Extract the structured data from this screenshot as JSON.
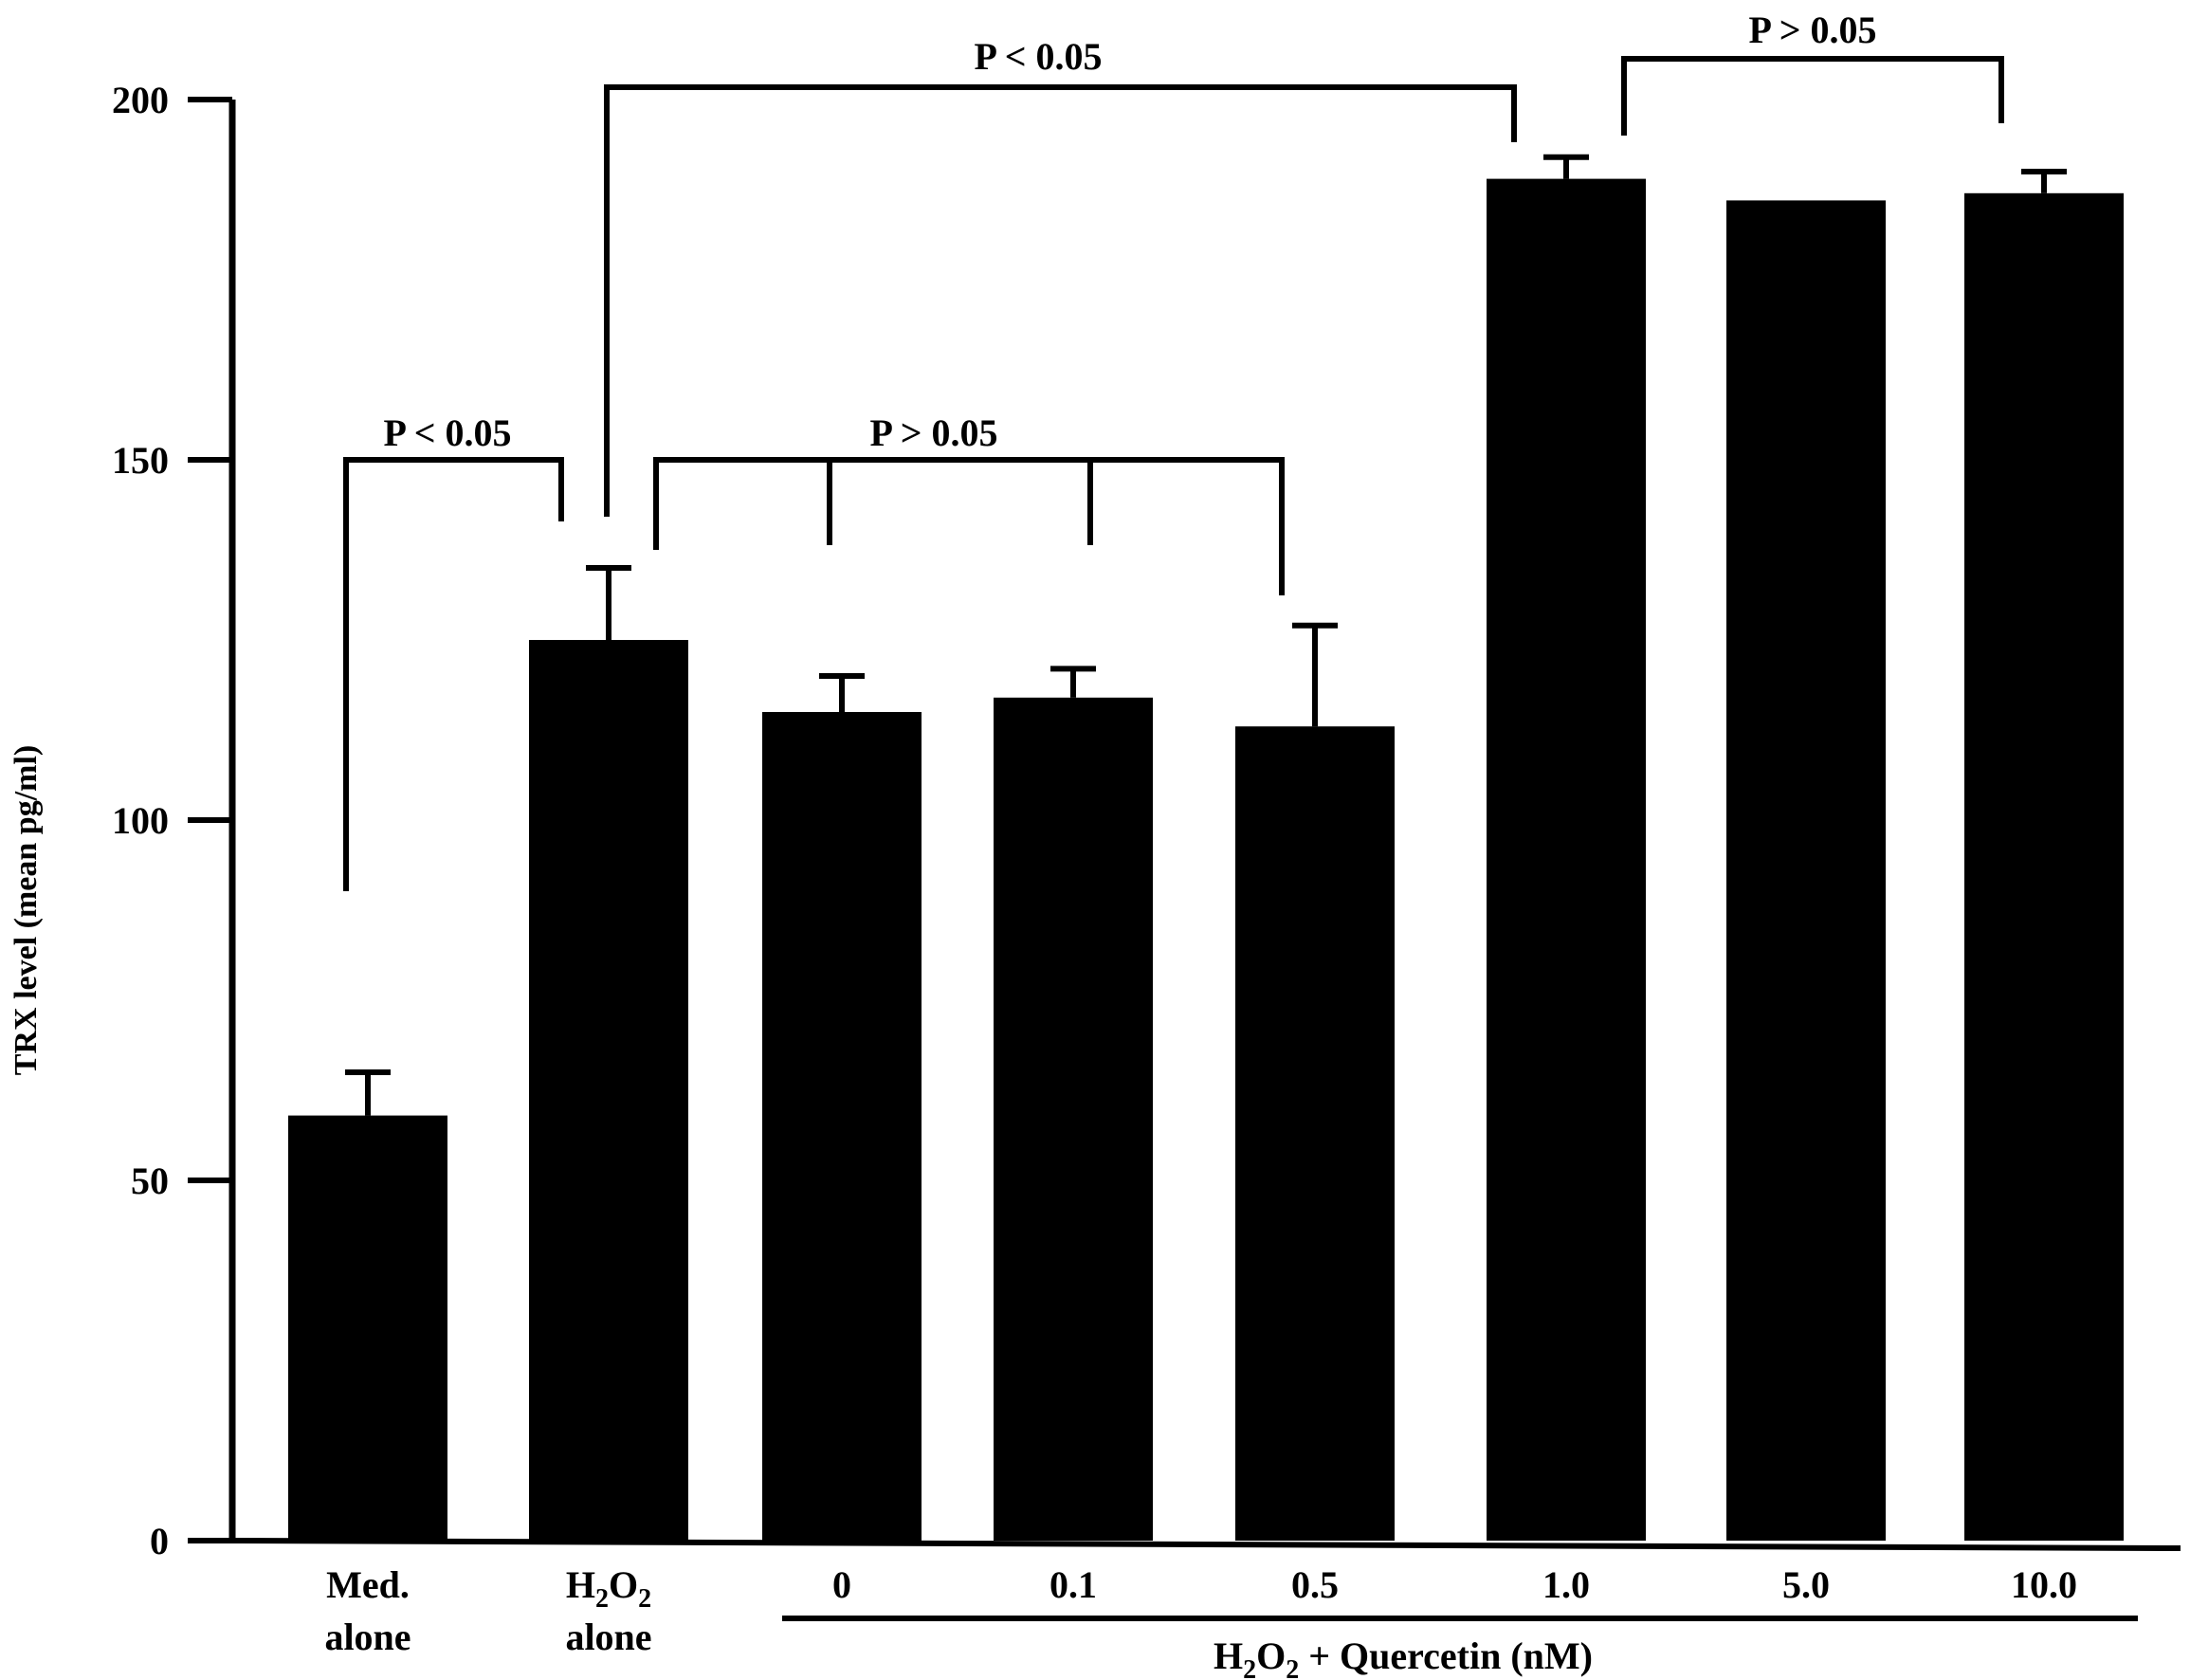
{
  "chart_data": {
    "type": "bar",
    "title": "",
    "xlabel": "",
    "ylabel": "TRX level (mean pg/ml)",
    "ylim": [
      0,
      200
    ],
    "yticks": [
      "0",
      "50",
      "100",
      "150",
      "200"
    ],
    "grid": false,
    "categories": [
      {
        "label": "Med.",
        "label2": "alone"
      },
      {
        "label": "H",
        "sub1": "2",
        "mid": "O",
        "sub2": "2",
        "label2": "alone"
      },
      {
        "label": "0"
      },
      {
        "label": "0.1"
      },
      {
        "label": "0.5"
      },
      {
        "label": "1.0"
      },
      {
        "label": "5.0"
      },
      {
        "label": "10.0"
      }
    ],
    "series": [
      {
        "name": "TRX level",
        "values": [
          59,
          125,
          115,
          117,
          113,
          189,
          186,
          187
        ],
        "errors": [
          6,
          10,
          5,
          4,
          14,
          3,
          0,
          3
        ]
      }
    ],
    "group_label": {
      "text_a": "H",
      "sub_a": "2",
      "text_b": "O",
      "sub_b": "2",
      "text_c": " + Quercetin  (nM)"
    },
    "significance": [
      {
        "text": "P < 0.05",
        "from": 0,
        "to": 1,
        "level": 150
      },
      {
        "text": "P > 0.05",
        "from": 1,
        "to": 4,
        "level": 150,
        "mids": [
          2,
          3
        ]
      },
      {
        "text": "P < 0.05",
        "from": 1,
        "to": 5,
        "level": 202
      },
      {
        "text": "P > 0.05",
        "from": 5,
        "to": 7,
        "level": 206
      }
    ]
  }
}
